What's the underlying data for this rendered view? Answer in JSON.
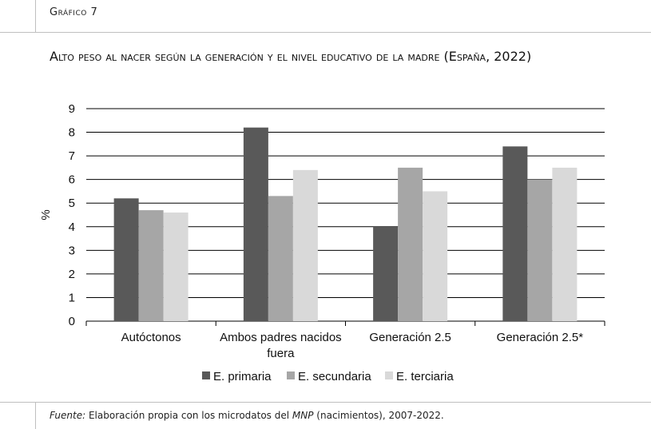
{
  "header": {
    "label": "Gráfico 7"
  },
  "title": "Alto peso al nacer según la generación y el nivel educativo de la madre (España, 2022)",
  "source": {
    "prefix": "Fuente:",
    "text1": "Elaboración propia con los microdatos del ",
    "italic": "MNP",
    "text2": " (nacimientos), 2007-2022."
  },
  "chart_data": {
    "type": "bar",
    "ylabel": "%",
    "ylim": [
      0,
      9
    ],
    "yticks": [
      0,
      1,
      2,
      3,
      4,
      5,
      6,
      7,
      8,
      9
    ],
    "grid": true,
    "legend_position": "bottom",
    "categories": [
      [
        "Autóctonos"
      ],
      [
        "Ambos padres nacidos",
        "fuera"
      ],
      [
        "Generación 2.5"
      ],
      [
        "Generación 2.5*"
      ]
    ],
    "series": [
      {
        "name": "E. primaria",
        "color": "#595959",
        "values": [
          5.2,
          8.2,
          4.0,
          7.4
        ]
      },
      {
        "name": "E. secundaria",
        "color": "#a6a6a6",
        "values": [
          4.7,
          5.3,
          6.5,
          6.0
        ]
      },
      {
        "name": "E. terciaria",
        "color": "#d9d9d9",
        "values": [
          4.6,
          6.4,
          5.5,
          6.5
        ]
      }
    ]
  }
}
